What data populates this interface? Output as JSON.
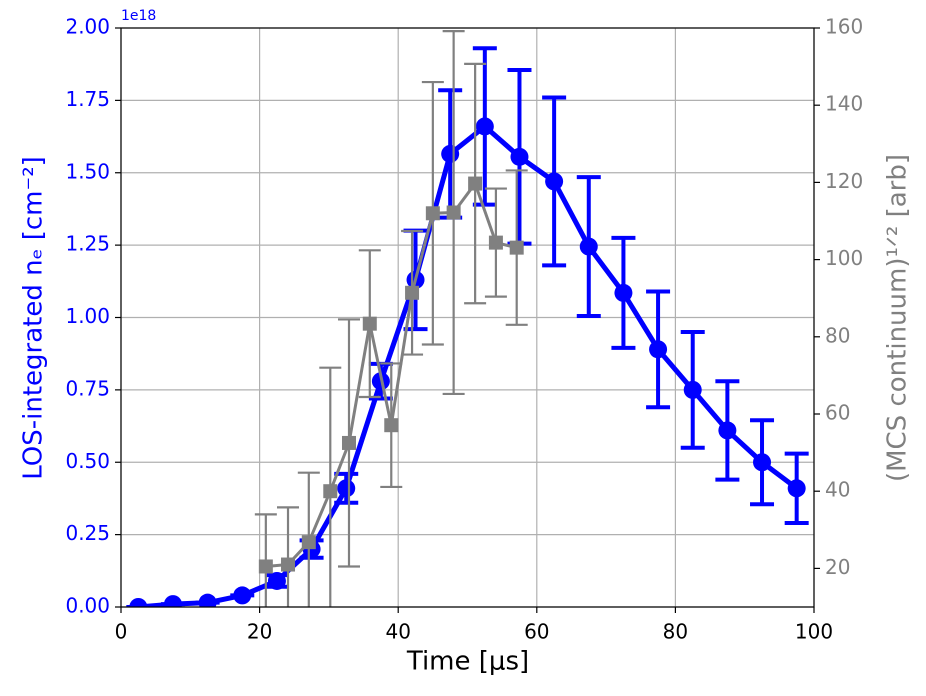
{
  "chart_data": {
    "type": "line",
    "x_label": "Time [μs]",
    "y_label": "LOS-integrated nₑ [cm⁻²]",
    "y2_label": "(MCS continuum)¹ᐟ² [arb]",
    "y_offset_label": "1e18",
    "xlim": [
      0,
      100
    ],
    "xticks": [
      0,
      20,
      40,
      60,
      80,
      100
    ],
    "ylim": [
      0,
      2.0
    ],
    "yticks": [
      {
        "value": 0,
        "label": "0.00"
      },
      {
        "value": 0.25,
        "label": "0.25"
      },
      {
        "value": 0.5,
        "label": "0.50"
      },
      {
        "value": 0.75,
        "label": "0.75"
      },
      {
        "value": 1.0,
        "label": "1.00"
      },
      {
        "value": 1.25,
        "label": "1.25"
      },
      {
        "value": 1.5,
        "label": "1.50"
      },
      {
        "value": 1.75,
        "label": "1.75"
      },
      {
        "value": 2.0,
        "label": "2.00"
      }
    ],
    "y2lim": [
      10,
      160
    ],
    "y2ticks": [
      20,
      40,
      60,
      80,
      100,
      120,
      140,
      160
    ],
    "grid": true,
    "series": [
      {
        "name": "LOS-integrated nₑ",
        "color": "#0000ff",
        "marker": "circle",
        "axis": "y",
        "x": [
          2.5,
          7.5,
          12.5,
          17.5,
          22.5,
          27.5,
          32.5,
          37.5,
          42.5,
          47.5,
          52.5,
          57.5,
          62.5,
          67.5,
          72.5,
          77.5,
          82.5,
          87.5,
          92.5,
          97.5
        ],
        "values": [
          0.0,
          0.01,
          0.015,
          0.04,
          0.09,
          0.2,
          0.41,
          0.78,
          1.13,
          1.565,
          1.66,
          1.555,
          1.47,
          1.245,
          1.085,
          0.89,
          0.75,
          0.61,
          0.5,
          0.41
        ],
        "errors": [
          0,
          0,
          0,
          0,
          0.02,
          0.03,
          0.05,
          0.06,
          0.17,
          0.22,
          0.27,
          0.3,
          0.29,
          0.24,
          0.19,
          0.2,
          0.2,
          0.17,
          0.145,
          0.12
        ]
      },
      {
        "name": "(MCS continuum)¹ᐟ²",
        "color": "#808080",
        "marker": "square",
        "axis": "y2",
        "x": [
          20.9,
          24.1,
          27.1,
          30.2,
          32.9,
          35.9,
          39.0,
          42.0,
          45.0,
          48.0,
          51.1,
          54.1,
          57.1
        ],
        "values": [
          20.5,
          21,
          26.8,
          40,
          52.5,
          83.4,
          57.1,
          91.4,
          112,
          112.2,
          119.7,
          104.4,
          103.1
        ],
        "errors": [
          13.5,
          14.8,
          18,
          32,
          32,
          19,
          16,
          16,
          34,
          47,
          31,
          14,
          20
        ]
      }
    ]
  }
}
